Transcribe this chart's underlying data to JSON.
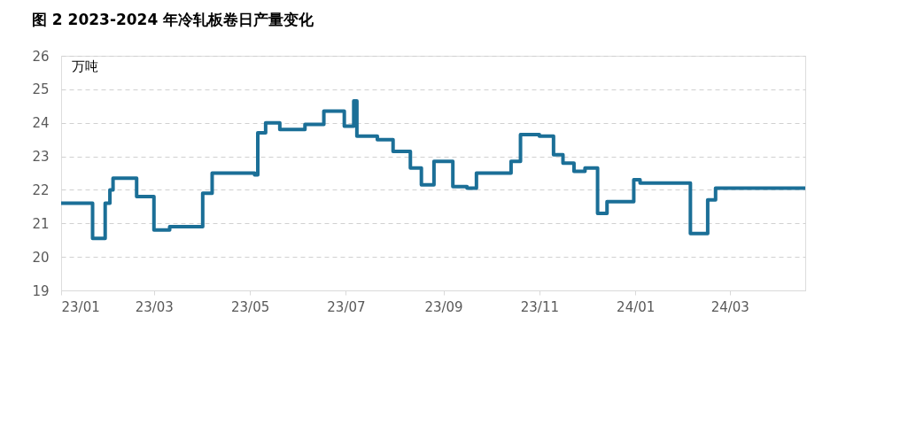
{
  "chart_data": {
    "type": "line",
    "title": "图 2 2023-2024 年冷轧板卷日产量变化",
    "ylabel": "万吨",
    "x": [
      "2023-01-01",
      "2023-01-21",
      "2023-01-21",
      "2023-01-29",
      "2023-01-29",
      "2023-02-01",
      "2023-02-01",
      "2023-02-03",
      "2023-02-03",
      "2023-02-18",
      "2023-02-18",
      "2023-03-01",
      "2023-03-01",
      "2023-03-11",
      "2023-03-11",
      "2023-04-01",
      "2023-04-01",
      "2023-04-07",
      "2023-04-07",
      "2023-05-04",
      "2023-05-04",
      "2023-05-06",
      "2023-05-06",
      "2023-05-11",
      "2023-05-11",
      "2023-05-20",
      "2023-05-20",
      "2023-06-05",
      "2023-06-05",
      "2023-06-17",
      "2023-06-17",
      "2023-06-30",
      "2023-06-30",
      "2023-07-06",
      "2023-07-06",
      "2023-07-08",
      "2023-07-08",
      "2023-07-21",
      "2023-07-21",
      "2023-07-31",
      "2023-07-31",
      "2023-08-11",
      "2023-08-11",
      "2023-08-18",
      "2023-08-18",
      "2023-08-26",
      "2023-08-26",
      "2023-09-07",
      "2023-09-07",
      "2023-09-16",
      "2023-09-16",
      "2023-09-22",
      "2023-09-22",
      "2023-10-14",
      "2023-10-14",
      "2023-10-20",
      "2023-10-20",
      "2023-11-01",
      "2023-11-01",
      "2023-11-10",
      "2023-11-10",
      "2023-11-16",
      "2023-11-16",
      "2023-11-23",
      "2023-11-23",
      "2023-11-30",
      "2023-11-30",
      "2023-12-08",
      "2023-12-08",
      "2023-12-14",
      "2023-12-14",
      "2023-12-31",
      "2023-12-31",
      "2024-01-04",
      "2024-01-04",
      "2024-02-05",
      "2024-02-05",
      "2024-02-16",
      "2024-02-16",
      "2024-02-21",
      "2024-02-21",
      "2024-04-18"
    ],
    "series": [
      {
        "color": "#1b6f97",
        "values": [
          21.6,
          21.6,
          20.55,
          20.55,
          21.6,
          21.6,
          22.0,
          22.0,
          22.35,
          22.35,
          21.8,
          21.8,
          20.8,
          20.8,
          20.9,
          20.9,
          21.9,
          21.9,
          22.5,
          22.5,
          22.45,
          22.45,
          23.7,
          23.7,
          24.0,
          24.0,
          23.8,
          23.8,
          23.95,
          23.95,
          24.35,
          24.35,
          23.9,
          23.9,
          24.65,
          24.65,
          23.6,
          23.6,
          23.5,
          23.5,
          23.15,
          23.15,
          22.65,
          22.65,
          22.15,
          22.15,
          22.85,
          22.85,
          22.1,
          22.1,
          22.05,
          22.05,
          22.5,
          22.5,
          22.85,
          22.85,
          23.65,
          23.65,
          23.6,
          23.6,
          23.05,
          23.05,
          22.8,
          22.8,
          22.55,
          22.55,
          22.65,
          22.65,
          21.3,
          21.3,
          21.65,
          21.65,
          22.3,
          22.3,
          22.2,
          22.2,
          20.7,
          20.7,
          21.7,
          21.7,
          22.05,
          22.05
        ]
      }
    ],
    "xlim": [
      "2023-01-01",
      "2024-04-18"
    ],
    "xticks": [
      {
        "value": "2023-01-01",
        "label": "23/01"
      },
      {
        "value": "2023-03-01",
        "label": "23/03"
      },
      {
        "value": "2023-05-01",
        "label": "23/05"
      },
      {
        "value": "2023-07-01",
        "label": "23/07"
      },
      {
        "value": "2023-09-01",
        "label": "23/09"
      },
      {
        "value": "2023-11-01",
        "label": "23/11"
      },
      {
        "value": "2024-01-01",
        "label": "24/01"
      },
      {
        "value": "2024-03-01",
        "label": "24/03"
      }
    ],
    "ylim": [
      19,
      26
    ],
    "yticks": [
      19,
      20,
      21,
      22,
      23,
      24,
      25,
      26
    ],
    "grid": "y",
    "line_style": "solid",
    "marker": "none"
  }
}
